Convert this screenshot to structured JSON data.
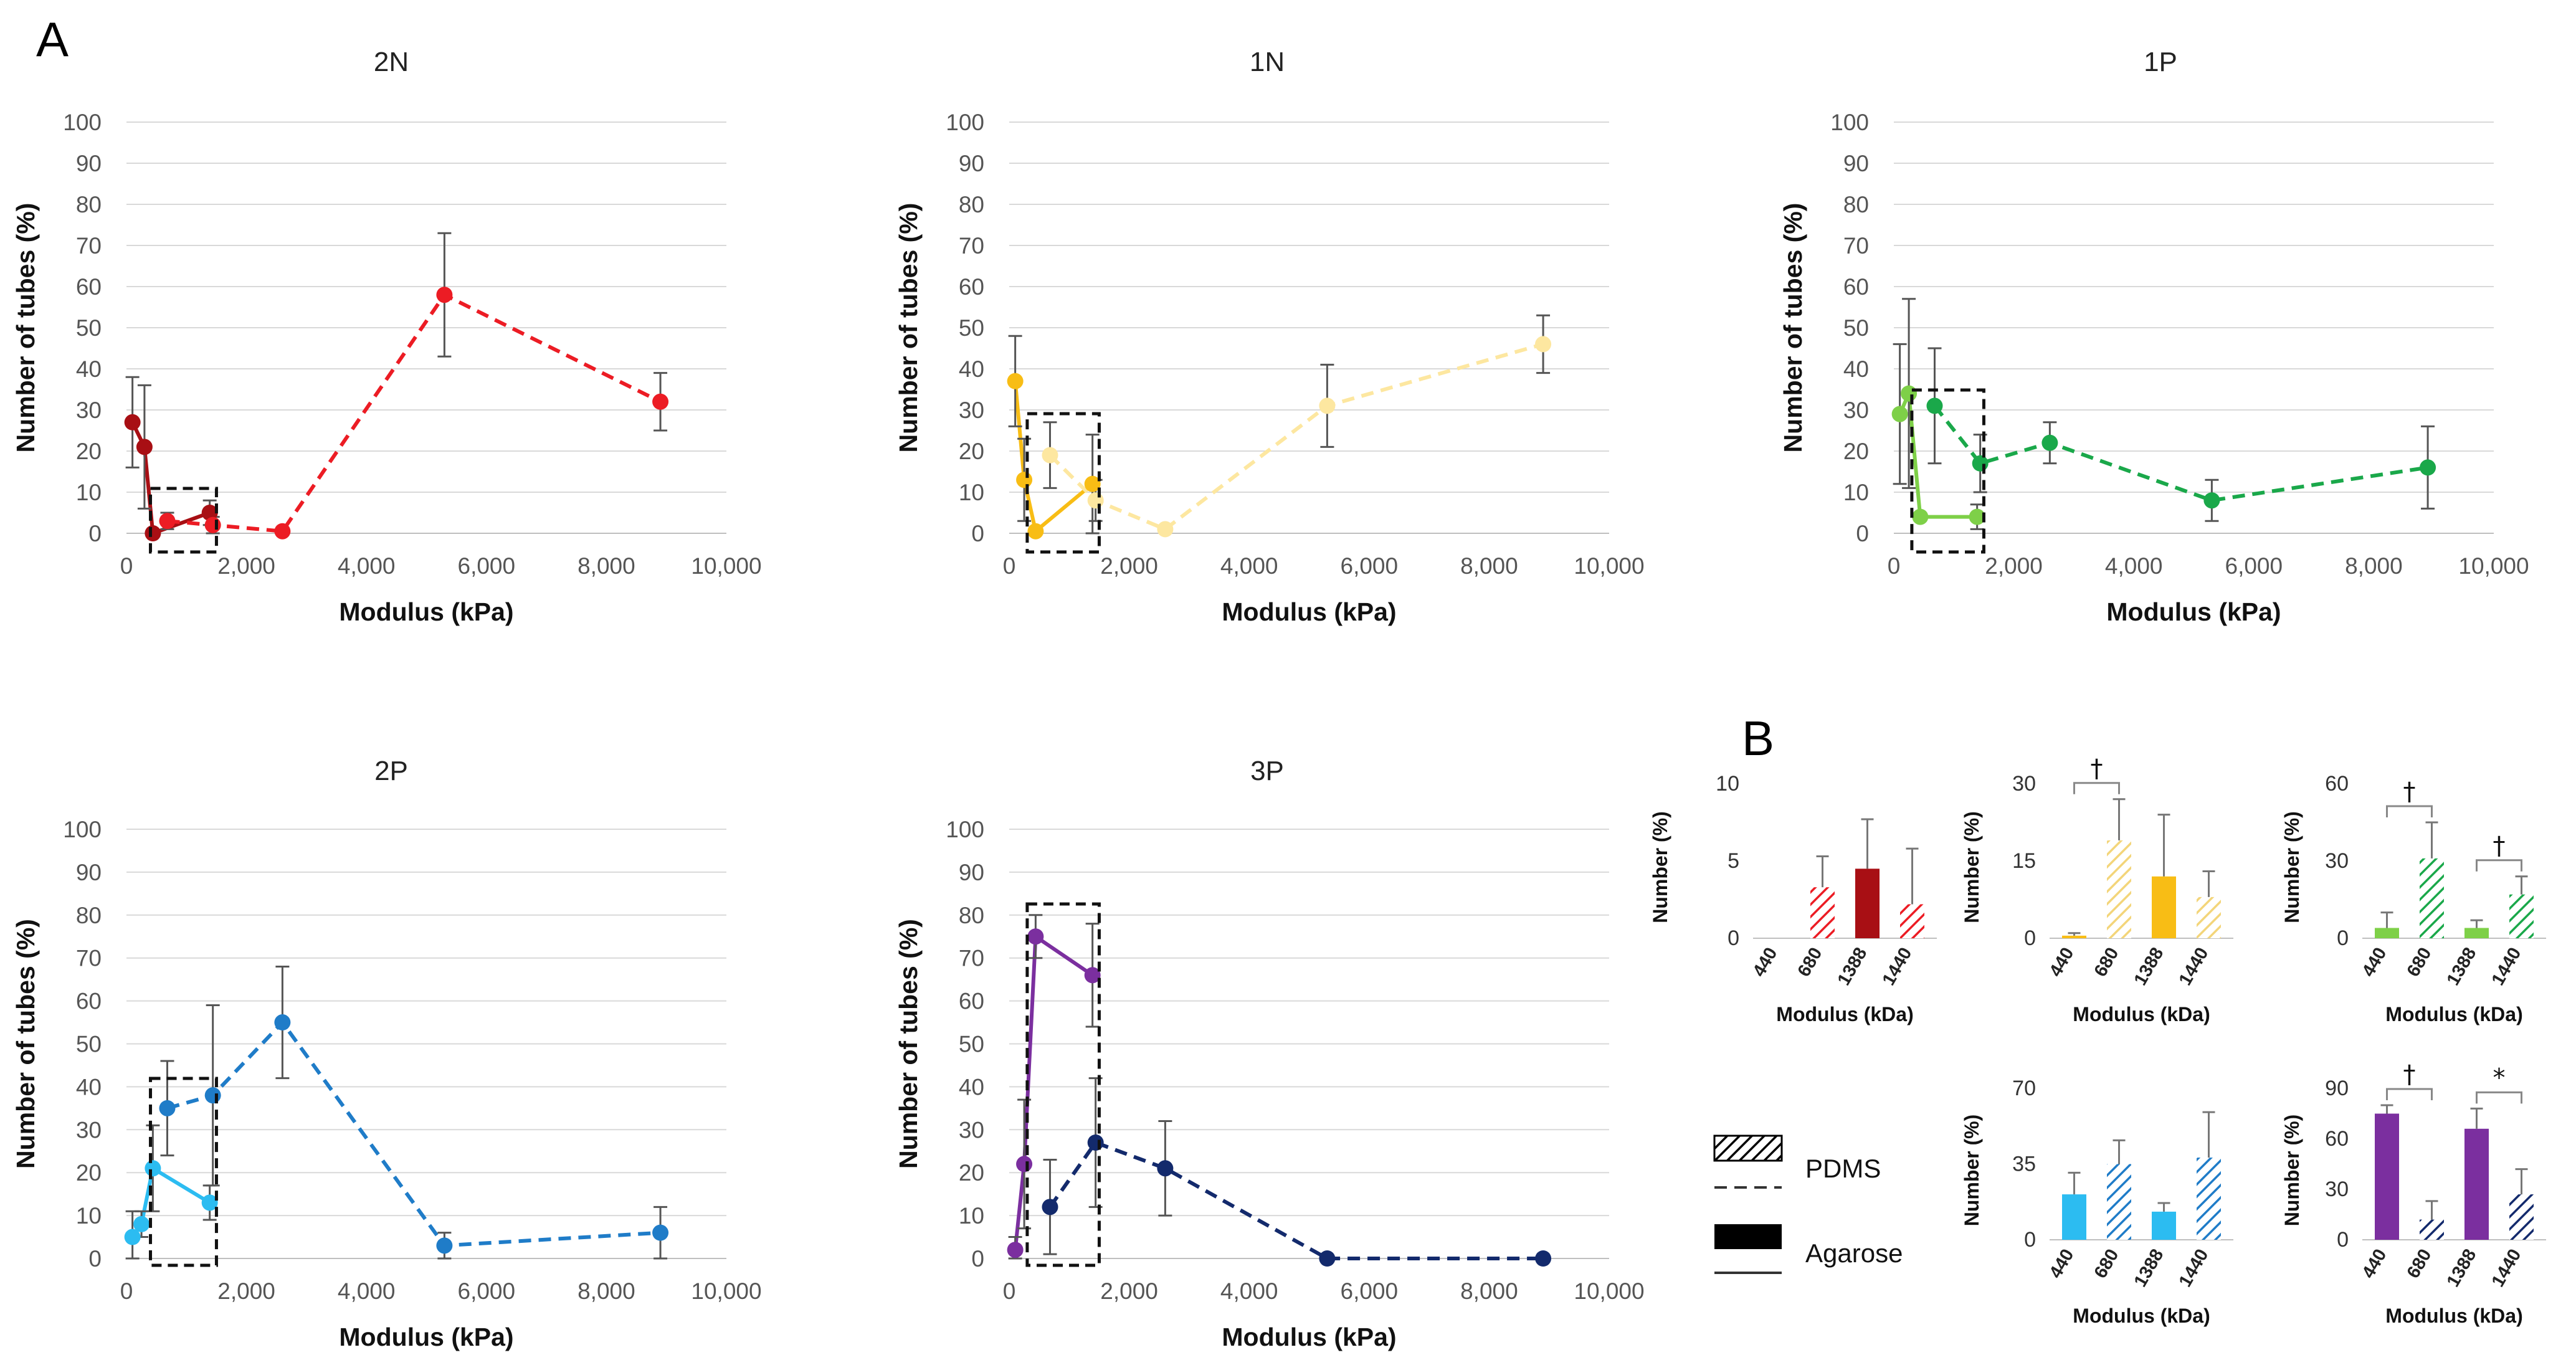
{
  "panel_labels": {
    "a": "A",
    "b": "B"
  },
  "legend": {
    "pdms": "PDMS",
    "agarose": "Agarose"
  },
  "chart_data": [
    {
      "id": "2N",
      "type": "line",
      "title": "2N",
      "xlabel": "Modulus (kPa)",
      "ylabel": "Number of tubes (%)",
      "xlim": [
        0,
        10000
      ],
      "ylim": [
        0,
        100
      ],
      "xticks": [
        "0",
        "2,000",
        "4,000",
        "6,000",
        "8,000",
        "10,000"
      ],
      "yticks": [
        "0",
        "10",
        "20",
        "30",
        "40",
        "50",
        "60",
        "70",
        "80",
        "90",
        "100"
      ],
      "highlight_box": [
        400,
        1500
      ],
      "series": [
        {
          "name": "Agarose",
          "style": "solid",
          "color": "#a80f14",
          "points": [
            [
              100,
              27,
              11
            ],
            [
              300,
              21,
              15
            ],
            [
              440,
              0,
              0
            ],
            [
              1388,
              5,
              3
            ]
          ]
        },
        {
          "name": "PDMS",
          "style": "dashed",
          "color": "#ec1c24",
          "points": [
            [
              680,
              3,
              2
            ],
            [
              1440,
              2,
              2
            ],
            [
              2600,
              0.5,
              0
            ],
            [
              5300,
              58,
              15
            ],
            [
              8900,
              32,
              7
            ]
          ]
        }
      ]
    },
    {
      "id": "1N",
      "type": "line",
      "title": "1N",
      "xlabel": "Modulus (kPa)",
      "ylabel": "Number of tubes (%)",
      "xlim": [
        0,
        10000
      ],
      "ylim": [
        0,
        100
      ],
      "xticks": [
        "0",
        "2,000",
        "4,000",
        "6,000",
        "8,000",
        "10,000"
      ],
      "yticks": [
        "0",
        "10",
        "20",
        "30",
        "40",
        "50",
        "60",
        "70",
        "80",
        "90",
        "100"
      ],
      "highlight_box": [
        300,
        1500
      ],
      "series": [
        {
          "name": "Agarose",
          "style": "solid",
          "color": "#f8bd15",
          "points": [
            [
              100,
              37,
              11
            ],
            [
              250,
              13,
              10
            ],
            [
              440,
              0.5,
              0
            ],
            [
              1388,
              12,
              12
            ]
          ]
        },
        {
          "name": "PDMS",
          "style": "dashed",
          "color": "#fde7a0",
          "points": [
            [
              680,
              19,
              8
            ],
            [
              1440,
              8,
              5
            ],
            [
              2600,
              1,
              0
            ],
            [
              5300,
              31,
              10
            ],
            [
              8900,
              46,
              7
            ]
          ]
        }
      ]
    },
    {
      "id": "1P",
      "type": "line",
      "title": "1P",
      "xlabel": "Modulus (kPa)",
      "ylabel": "Number of tubes (%)",
      "xlim": [
        0,
        10000
      ],
      "ylim": [
        0,
        100
      ],
      "xticks": [
        "0",
        "2,000",
        "4,000",
        "6,000",
        "8,000",
        "10,000"
      ],
      "yticks": [
        "0",
        "10",
        "20",
        "30",
        "40",
        "50",
        "60",
        "70",
        "80",
        "90",
        "100"
      ],
      "highlight_box": [
        300,
        1500
      ],
      "series": [
        {
          "name": "Agarose",
          "style": "solid",
          "color": "#7ed048",
          "points": [
            [
              100,
              29,
              17
            ],
            [
              250,
              34,
              23
            ],
            [
              440,
              4,
              0
            ],
            [
              1388,
              4,
              3
            ]
          ]
        },
        {
          "name": "PDMS",
          "style": "dashed",
          "color": "#1aa84a",
          "points": [
            [
              680,
              31,
              14
            ],
            [
              1440,
              17,
              7
            ],
            [
              2600,
              22,
              5
            ],
            [
              5300,
              8,
              5
            ],
            [
              8900,
              16,
              10
            ]
          ]
        }
      ]
    },
    {
      "id": "2P",
      "type": "line",
      "title": "2P",
      "xlabel": "Modulus (kPa)",
      "ylabel": "Number of tubes (%)",
      "xlim": [
        0,
        10000
      ],
      "ylim": [
        0,
        100
      ],
      "xticks": [
        "0",
        "2,000",
        "4,000",
        "6,000",
        "8,000",
        "10,000"
      ],
      "yticks": [
        "0",
        "10",
        "20",
        "30",
        "40",
        "50",
        "60",
        "70",
        "80",
        "90",
        "100"
      ],
      "highlight_box": [
        400,
        1500
      ],
      "series": [
        {
          "name": "Agarose",
          "style": "solid",
          "color": "#2cbcf1",
          "points": [
            [
              100,
              5,
              6
            ],
            [
              250,
              8,
              3
            ],
            [
              440,
              21,
              10
            ],
            [
              1388,
              13,
              4
            ]
          ]
        },
        {
          "name": "PDMS",
          "style": "dashed",
          "color": "#1f7cc8",
          "points": [
            [
              680,
              35,
              11
            ],
            [
              1440,
              38,
              21
            ],
            [
              2600,
              55,
              13
            ],
            [
              5300,
              3,
              3
            ],
            [
              8900,
              6,
              6
            ]
          ]
        }
      ]
    },
    {
      "id": "3P",
      "type": "line",
      "title": "3P",
      "xlabel": "Modulus (kPa)",
      "ylabel": "Number of tubes (%)",
      "xlim": [
        0,
        10000
      ],
      "ylim": [
        0,
        100
      ],
      "xticks": [
        "0",
        "2,000",
        "4,000",
        "6,000",
        "8,000",
        "10,000"
      ],
      "yticks": [
        "0",
        "10",
        "20",
        "30",
        "40",
        "50",
        "60",
        "70",
        "80",
        "90",
        "100"
      ],
      "highlight_box": [
        300,
        1500
      ],
      "series": [
        {
          "name": "Agarose",
          "style": "solid",
          "color": "#7b2f9f",
          "points": [
            [
              100,
              2,
              3
            ],
            [
              250,
              22,
              15
            ],
            [
              440,
              75,
              5
            ],
            [
              1388,
              66,
              12
            ]
          ]
        },
        {
          "name": "PDMS",
          "style": "dashed",
          "color": "#132a6c",
          "points": [
            [
              680,
              12,
              11
            ],
            [
              1440,
              27,
              15
            ],
            [
              2600,
              21,
              11
            ],
            [
              5300,
              0,
              0
            ],
            [
              8900,
              0,
              0
            ]
          ]
        }
      ]
    },
    {
      "id": "B-2N",
      "type": "bar",
      "xlabel": "Modulus (kDa)",
      "ylabel": "Number (%)",
      "ylim": [
        0,
        10
      ],
      "yticks": [
        "0",
        "5",
        "10"
      ],
      "categories": [
        "440",
        "680",
        "1388",
        "1440"
      ],
      "values": [
        0,
        3.3,
        4.5,
        2.2
      ],
      "errors": [
        0,
        2,
        3.2,
        3.6
      ],
      "materials": [
        "Agarose",
        "PDMS",
        "Agarose",
        "PDMS"
      ],
      "colors": [
        "#a80f14",
        "#ec1c24",
        "#a80f14",
        "#ec1c24"
      ],
      "significance": []
    },
    {
      "id": "B-1N",
      "type": "bar",
      "xlabel": "Modulus (kDa)",
      "ylabel": "Number (%)",
      "ylim": [
        0,
        30
      ],
      "yticks": [
        "0",
        "15",
        "30"
      ],
      "categories": [
        "440",
        "680",
        "1388",
        "1440"
      ],
      "values": [
        0.5,
        19,
        12,
        8
      ],
      "errors": [
        0.5,
        8,
        12,
        5
      ],
      "materials": [
        "Agarose",
        "PDMS",
        "Agarose",
        "PDMS"
      ],
      "colors": [
        "#f8bd15",
        "#f3d57a",
        "#f8bd15",
        "#f3d57a"
      ],
      "significance": [
        {
          "from": 0,
          "to": 1,
          "mark": "†"
        }
      ]
    },
    {
      "id": "B-1P",
      "type": "bar",
      "xlabel": "Modulus (kDa)",
      "ylabel": "Number (%)",
      "ylim": [
        0,
        60
      ],
      "yticks": [
        "0",
        "30",
        "60"
      ],
      "categories": [
        "440",
        "680",
        "1388",
        "1440"
      ],
      "values": [
        4,
        31,
        4,
        17
      ],
      "errors": [
        6,
        14,
        3,
        7
      ],
      "materials": [
        "Agarose",
        "PDMS",
        "Agarose",
        "PDMS"
      ],
      "colors": [
        "#7ed048",
        "#1aa84a",
        "#7ed048",
        "#1aa84a"
      ],
      "significance": [
        {
          "from": 0,
          "to": 1,
          "mark": "†"
        },
        {
          "from": 2,
          "to": 3,
          "mark": "†"
        }
      ]
    },
    {
      "id": "B-2P",
      "type": "bar",
      "xlabel": "Modulus (kDa)",
      "ylabel": "Number (%)",
      "ylim": [
        0,
        70
      ],
      "yticks": [
        "0",
        "35",
        "70"
      ],
      "categories": [
        "440",
        "680",
        "1388",
        "1440"
      ],
      "values": [
        21,
        35,
        13,
        38
      ],
      "errors": [
        10,
        11,
        4,
        21
      ],
      "materials": [
        "Agarose",
        "PDMS",
        "Agarose",
        "PDMS"
      ],
      "colors": [
        "#2cbcf1",
        "#1f7cc8",
        "#2cbcf1",
        "#1f7cc8"
      ],
      "significance": []
    },
    {
      "id": "B-3P",
      "type": "bar",
      "xlabel": "Modulus (kDa)",
      "ylabel": "Number (%)",
      "ylim": [
        0,
        90
      ],
      "yticks": [
        "0",
        "30",
        "60",
        "90"
      ],
      "categories": [
        "440",
        "680",
        "1388",
        "1440"
      ],
      "values": [
        75,
        12,
        66,
        27
      ],
      "errors": [
        5,
        11,
        12,
        15
      ],
      "materials": [
        "Agarose",
        "PDMS",
        "Agarose",
        "PDMS"
      ],
      "colors": [
        "#7b2f9f",
        "#132a6c",
        "#7b2f9f",
        "#132a6c"
      ],
      "significance": [
        {
          "from": 0,
          "to": 1,
          "mark": "†"
        },
        {
          "from": 2,
          "to": 3,
          "mark": "*"
        }
      ]
    }
  ]
}
